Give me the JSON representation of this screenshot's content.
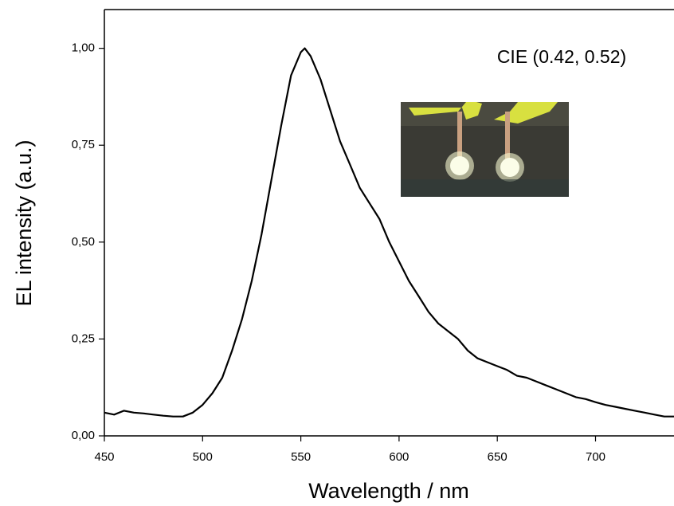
{
  "chart_data": {
    "type": "line",
    "x_label": "Wavelength / nm",
    "y_label": "EL intensity (a.u.)",
    "annotation": "CIE (0.42, 0.52)",
    "xlim": [
      450,
      740
    ],
    "xticks": [
      450,
      500,
      550,
      600,
      650,
      700
    ],
    "ylim": [
      0,
      1.1
    ],
    "yticks": [
      {
        "value": 0,
        "label": "0,00"
      },
      {
        "value": 0.25,
        "label": "0,25"
      },
      {
        "value": 0.5,
        "label": "0,50"
      },
      {
        "value": 0.75,
        "label": "0,75"
      },
      {
        "value": 1,
        "label": "1,00"
      }
    ],
    "x": [
      450,
      455,
      460,
      465,
      470,
      475,
      480,
      485,
      490,
      495,
      500,
      505,
      510,
      515,
      520,
      525,
      530,
      535,
      540,
      545,
      550,
      552,
      555,
      560,
      565,
      570,
      575,
      580,
      585,
      590,
      595,
      600,
      605,
      610,
      615,
      620,
      625,
      630,
      635,
      640,
      645,
      650,
      655,
      660,
      665,
      670,
      675,
      680,
      685,
      690,
      695,
      700,
      705,
      710,
      715,
      720,
      725,
      730,
      735,
      740
    ],
    "series": [
      {
        "color": "#000000",
        "values": [
          0.06,
          0.055,
          0.065,
          0.06,
          0.058,
          0.055,
          0.052,
          0.05,
          0.05,
          0.06,
          0.08,
          0.11,
          0.15,
          0.22,
          0.3,
          0.4,
          0.52,
          0.66,
          0.8,
          0.93,
          0.99,
          1.0,
          0.98,
          0.92,
          0.84,
          0.76,
          0.7,
          0.64,
          0.6,
          0.56,
          0.5,
          0.45,
          0.4,
          0.36,
          0.32,
          0.29,
          0.27,
          0.25,
          0.22,
          0.2,
          0.19,
          0.18,
          0.17,
          0.155,
          0.15,
          0.14,
          0.13,
          0.12,
          0.11,
          0.1,
          0.095,
          0.087,
          0.08,
          0.075,
          0.07,
          0.065,
          0.06,
          0.055,
          0.05,
          0.05
        ]
      }
    ]
  }
}
